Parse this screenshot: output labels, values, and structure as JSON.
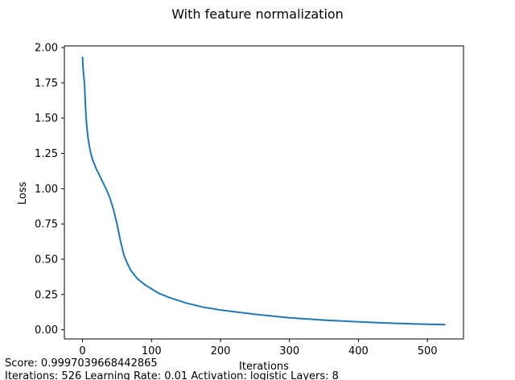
{
  "chart_data": {
    "type": "line",
    "title": "With feature normalization",
    "xlabel": "Iterations",
    "ylabel": "Loss",
    "xlim": [
      -26.3,
      552.3
    ],
    "ylim": [
      -0.0651,
      2.0121
    ],
    "xticks": [
      0,
      100,
      200,
      300,
      400,
      500
    ],
    "xtick_labels": [
      "0",
      "100",
      "200",
      "300",
      "400",
      "500"
    ],
    "yticks": [
      0.0,
      0.25,
      0.5,
      0.75,
      1.0,
      1.25,
      1.5,
      1.75,
      2.0
    ],
    "ytick_labels": [
      "0.00",
      "0.25",
      "0.50",
      "0.75",
      "1.00",
      "1.25",
      "1.50",
      "1.75",
      "2.00"
    ],
    "grid": false,
    "series": [
      {
        "name": "loss",
        "color": "#1f77b4",
        "x": [
          0,
          1,
          2,
          3,
          4,
          5,
          6,
          8,
          10,
          12,
          15,
          20,
          25,
          30,
          35,
          40,
          45,
          50,
          55,
          60,
          65,
          70,
          75,
          80,
          90,
          100,
          110,
          125,
          150,
          175,
          200,
          250,
          300,
          350,
          400,
          450,
          500,
          525
        ],
        "y": [
          1.93,
          1.84,
          1.79,
          1.73,
          1.62,
          1.52,
          1.45,
          1.36,
          1.3,
          1.25,
          1.2,
          1.14,
          1.09,
          1.04,
          0.99,
          0.93,
          0.85,
          0.75,
          0.63,
          0.53,
          0.47,
          0.42,
          0.39,
          0.36,
          0.32,
          0.29,
          0.26,
          0.23,
          0.19,
          0.16,
          0.14,
          0.11,
          0.085,
          0.068,
          0.056,
          0.046,
          0.039,
          0.036
        ]
      }
    ]
  },
  "footer": {
    "score": "Score: 0.9997039668442865",
    "params": "Iterations: 526 Learning Rate: 0.01 Activation: logistic Layers: 8"
  }
}
